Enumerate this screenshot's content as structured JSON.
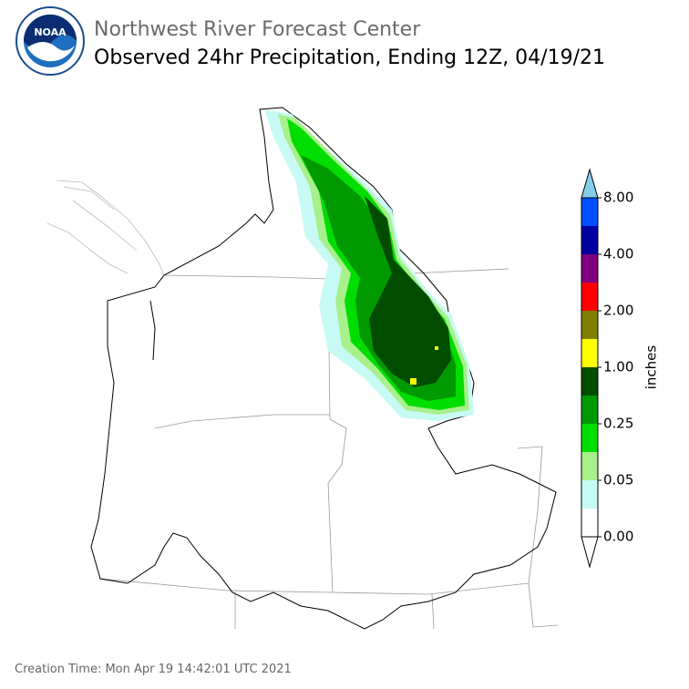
{
  "header": {
    "org": "Northwest River Forecast Center",
    "title": "Observed 24hr Precipitation, Ending 12Z, 04/19/21"
  },
  "legend": {
    "unit": "inches",
    "colors": [
      "#ffffff",
      "#ffffff",
      "#c8faf5",
      "#a8f08c",
      "#00dd00",
      "#009900",
      "#004d00",
      "#ffff00",
      "#808000",
      "#ff0000",
      "#800080",
      "#0000a0",
      "#0050ff",
      "#87ceeb"
    ],
    "ticks": [
      {
        "value": 0,
        "label": "0.00"
      },
      {
        "value": 0.05,
        "label": "0.05"
      },
      {
        "value": 0.25,
        "label": "0.25"
      },
      {
        "value": 1,
        "label": "1.00"
      },
      {
        "value": 2,
        "label": "2.00"
      },
      {
        "value": 4,
        "label": "4.00"
      },
      {
        "value": 8,
        "label": "8.00"
      }
    ]
  },
  "footer": "Creation Time: Mon Apr 19 14:42:01 UTC 2021"
}
